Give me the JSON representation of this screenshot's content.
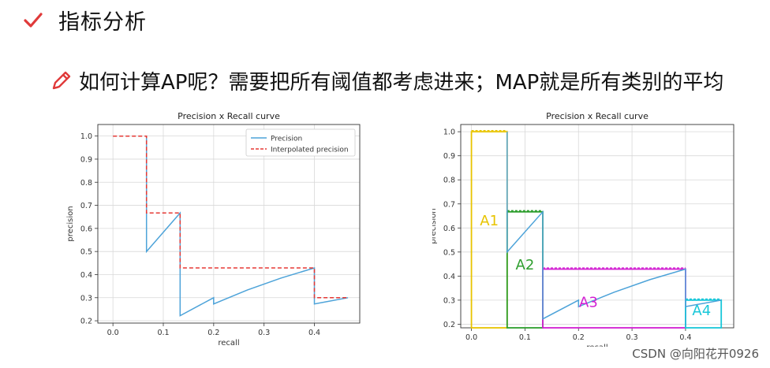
{
  "header": {
    "title": "指标分析",
    "check_icon_color": "#e03a3a"
  },
  "subtitle": {
    "text": "如何计算AP呢？需要把所有阈值都考虑进来；MAP就是所有类别的平均",
    "pencil_icon_color": "#e03a3a"
  },
  "watermark": "CSDN @向阳花开0926",
  "chart_data": [
    {
      "type": "line",
      "title": "Precision x Recall curve",
      "xlabel": "recall",
      "ylabel": "precision",
      "xlim": [
        -0.03,
        0.49
      ],
      "ylim": [
        0.19,
        1.05
      ],
      "xticks": [
        "0.0",
        "0.1",
        "0.2",
        "0.3",
        "0.4"
      ],
      "yticks": [
        "0.2",
        "0.3",
        "0.4",
        "0.5",
        "0.6",
        "0.7",
        "0.8",
        "0.9",
        "1.0"
      ],
      "grid": true,
      "legend_position": "top-right",
      "series": [
        {
          "name": "Precision",
          "color": "#4da3d9",
          "style": "solid",
          "x": [
            0.0667,
            0.0667,
            0.1333,
            0.1333,
            0.2,
            0.2,
            0.2667,
            0.3333,
            0.4,
            0.4,
            0.4667
          ],
          "y": [
            1.0,
            0.5,
            0.667,
            0.222,
            0.3,
            0.273,
            0.333,
            0.385,
            0.429,
            0.273,
            0.3
          ]
        },
        {
          "name": "Interpolated precision",
          "color": "#e53935",
          "style": "dashed",
          "x": [
            0.0,
            0.0667,
            0.0667,
            0.1333,
            0.1333,
            0.4,
            0.4,
            0.4667
          ],
          "y": [
            1.0,
            1.0,
            0.667,
            0.667,
            0.429,
            0.429,
            0.3,
            0.3
          ]
        }
      ]
    },
    {
      "type": "line",
      "title": "Precision x Recall curve",
      "xlabel": "recall",
      "ylabel": "precision",
      "xlim": [
        -0.02,
        0.49
      ],
      "ylim": [
        0.185,
        1.03
      ],
      "xticks": [
        "0.0",
        "0.1",
        "0.2",
        "0.3",
        "0.4"
      ],
      "yticks": [
        "0.2",
        "0.3",
        "0.4",
        "0.5",
        "0.6",
        "0.7",
        "0.8",
        "0.9",
        "1.0"
      ],
      "grid": true,
      "series": [
        {
          "color": "#4da3d9",
          "style": "solid",
          "x": [
            0.0667,
            0.0667,
            0.1333,
            0.1333,
            0.2,
            0.2,
            0.2667,
            0.3333,
            0.4,
            0.4,
            0.4667
          ],
          "y": [
            1.0,
            0.5,
            0.667,
            0.222,
            0.3,
            0.273,
            0.333,
            0.385,
            0.429,
            0.273,
            0.3
          ]
        }
      ],
      "areas": [
        {
          "label": "A1",
          "x0": 0.0,
          "x1": 0.0667,
          "y0": 0.185,
          "y1": 1.0,
          "color": "#e8c400"
        },
        {
          "label": "A2",
          "x0": 0.0667,
          "x1": 0.1333,
          "y0": 0.185,
          "y1": 0.667,
          "color": "#2e9e2e"
        },
        {
          "label": "A3",
          "x0": 0.1333,
          "x1": 0.4,
          "y0": 0.185,
          "y1": 0.429,
          "color": "#d21fd2"
        },
        {
          "label": "A4",
          "x0": 0.4,
          "x1": 0.4667,
          "y0": 0.185,
          "y1": 0.3,
          "color": "#19c7d9"
        }
      ]
    }
  ]
}
